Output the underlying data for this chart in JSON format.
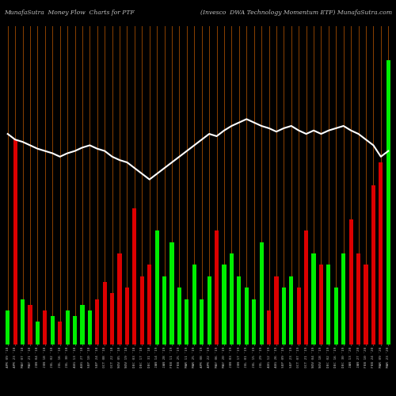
{
  "title_left": "MunafaSutra  Money Flow  Charts for PTF",
  "title_right": "(Invesco  DWA Technology Momentum ETF) MunafaSutra.com",
  "background_color": "#000000",
  "labels": [
    "APR 09 '18",
    "APR 23 '18",
    "MAY 07 '18",
    "MAY 21 '18",
    "JUN 04 '18",
    "JUN 18 '18",
    "JUL 02 '18",
    "JUL 16 '18",
    "JUL 30 '18",
    "AUG 13 '18",
    "AUG 27 '18",
    "SEP 10 '18",
    "SEP 24 '18",
    "OCT 08 '18",
    "OCT 22 '18",
    "NOV 05 '18",
    "NOV 19 '18",
    "DEC 03 '18",
    "DEC 17 '18",
    "DEC 31 '18",
    "JAN 14 '19",
    "JAN 28 '19",
    "FEB 11 '19",
    "FEB 25 '19",
    "MAR 11 '19",
    "MAR 25 '19",
    "APR 08 '19",
    "APR 22 '19",
    "MAY 06 '19",
    "MAY 20 '19",
    "JUN 03 '19",
    "JUN 17 '19",
    "JUL 01 '19",
    "JUL 15 '19",
    "JUL 29 '19",
    "AUG 12 '19",
    "AUG 26 '19",
    "SEP 09 '19",
    "SEP 23 '19",
    "OCT 07 '19",
    "OCT 21 '19",
    "NOV 04 '19",
    "NOV 18 '19",
    "DEC 02 '19",
    "DEC 16 '19",
    "DEC 30 '19",
    "JAN 13 '20",
    "JAN 27 '20",
    "FEB 10 '20",
    "FEB 24 '20",
    "MAR 09 '20",
    "MAR 23 '20"
  ],
  "values": [
    3.0,
    18.0,
    4.0,
    3.5,
    2.0,
    3.0,
    2.5,
    2.0,
    3.0,
    2.5,
    3.5,
    3.0,
    4.0,
    5.5,
    4.5,
    8.0,
    5.0,
    12.0,
    6.0,
    7.0,
    10.0,
    6.0,
    9.0,
    5.0,
    4.0,
    7.0,
    4.0,
    6.0,
    10.0,
    7.0,
    8.0,
    6.0,
    5.0,
    4.0,
    9.0,
    3.0,
    6.0,
    5.0,
    6.0,
    5.0,
    10.0,
    8.0,
    7.0,
    7.0,
    5.0,
    8.0,
    11.0,
    8.0,
    7.0,
    14.0,
    16.0,
    25.0
  ],
  "colors": [
    "green",
    "red",
    "green",
    "red",
    "green",
    "red",
    "green",
    "red",
    "green",
    "green",
    "green",
    "green",
    "red",
    "red",
    "red",
    "red",
    "red",
    "red",
    "red",
    "red",
    "green",
    "green",
    "green",
    "green",
    "green",
    "green",
    "green",
    "green",
    "red",
    "green",
    "green",
    "green",
    "green",
    "green",
    "green",
    "red",
    "red",
    "green",
    "green",
    "red",
    "red",
    "green",
    "red",
    "green",
    "green",
    "green",
    "red",
    "red",
    "red",
    "red",
    "red",
    "green"
  ],
  "line_values": [
    18.5,
    18.0,
    17.8,
    17.5,
    17.2,
    17.0,
    16.8,
    16.5,
    16.8,
    17.0,
    17.3,
    17.5,
    17.2,
    17.0,
    16.5,
    16.2,
    16.0,
    15.5,
    15.0,
    14.5,
    15.0,
    15.5,
    16.0,
    16.5,
    17.0,
    17.5,
    18.0,
    18.5,
    18.3,
    18.8,
    19.2,
    19.5,
    19.8,
    19.5,
    19.2,
    19.0,
    18.7,
    19.0,
    19.2,
    18.8,
    18.5,
    18.8,
    18.5,
    18.8,
    19.0,
    19.2,
    18.8,
    18.5,
    18.0,
    17.5,
    16.5,
    17.0
  ],
  "orange_line_color": "#8B4000",
  "bar_positive_color": "#00EE00",
  "bar_negative_color": "#DD0000",
  "white_line_color": "#FFFFFF",
  "title_color": "#C0C0C0",
  "label_color": "#C0C0C0",
  "ylim_max": 28.0
}
